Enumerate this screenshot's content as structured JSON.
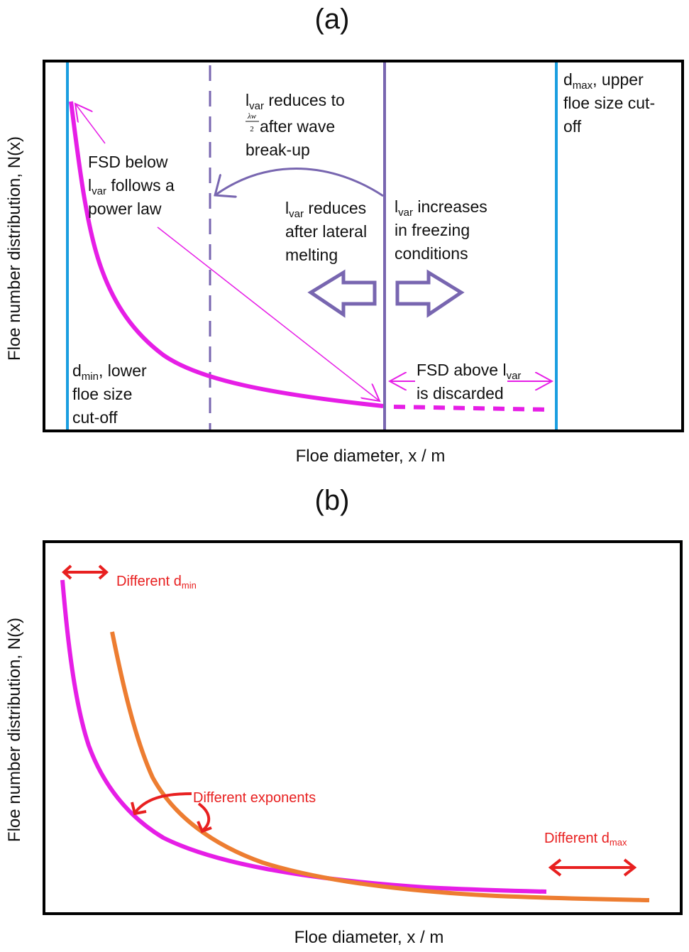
{
  "colors": {
    "fsd_curve": "#e61ee6",
    "alt_curve": "#ed7d31",
    "lvar_line": "#7866b0",
    "cutoff_line": "#1a9ee0",
    "annotation_red": "#e82020"
  },
  "panel_a": {
    "title": "(a)",
    "xlabel": "Floe diameter, x / m",
    "ylabel": "Floe number distribution, N(x)",
    "fsd_below": [
      "FSD below",
      "l",
      "var",
      " follows a",
      "power law"
    ],
    "lvar_wave": [
      "l",
      "var",
      " reduces to",
      " after wave",
      "break-up"
    ],
    "fraction": {
      "numerator": "λw",
      "denominator": "2"
    },
    "lvar_melt": [
      "l",
      "var",
      " reduces",
      "after lateral",
      "melting"
    ],
    "lvar_freeze": [
      "l",
      "var",
      " increases",
      "in freezing",
      "conditions"
    ],
    "dmin": [
      "d",
      "min",
      ", lower",
      "floe size",
      "cut-off"
    ],
    "dmax": [
      "d",
      "max",
      ", upper",
      "floe size cut-",
      "off"
    ],
    "fsd_above": [
      "FSD above l",
      "var",
      "is discarded"
    ]
  },
  "panel_b": {
    "title": "(b)",
    "xlabel": "Floe diameter, x / m",
    "ylabel": "Floe number distribution, N(x)",
    "diff_dmin": [
      "Different d",
      "min"
    ],
    "diff_exponents": "Different exponents",
    "diff_dmax": [
      "Different d",
      "max"
    ]
  }
}
